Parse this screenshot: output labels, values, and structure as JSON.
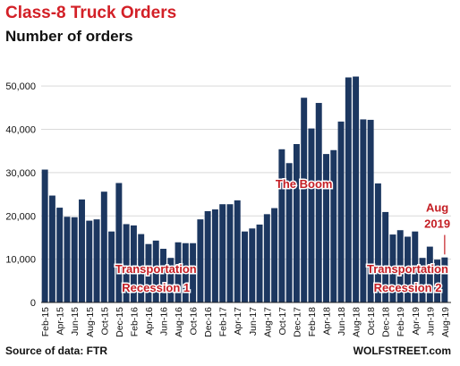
{
  "header": {
    "title": "Class-8 Truck Orders",
    "subtitle": "Number of orders"
  },
  "footer": {
    "source": "Source of data: FTR",
    "brand": "WOLFSTREET.com"
  },
  "colors": {
    "bar": "#1c3760",
    "title": "#d32027",
    "annotation": "#c41e24",
    "grid": "#d9d9d9",
    "axis": "#222222"
  },
  "chart_data": {
    "type": "bar",
    "title": "Class-8 Truck Orders",
    "subtitle": "Number of orders",
    "xlabel": "",
    "ylabel": "",
    "ylim": [
      0,
      55000
    ],
    "yticks": [
      0,
      10000,
      20000,
      30000,
      40000,
      50000
    ],
    "ytick_labels": [
      "0",
      "10,000",
      "20,000",
      "30,000",
      "40,000",
      "50,000"
    ],
    "grid": "horizontal",
    "categories": [
      "Feb-15",
      "Mar-15",
      "Apr-15",
      "May-15",
      "Jun-15",
      "Jul-15",
      "Aug-15",
      "Sep-15",
      "Oct-15",
      "Nov-15",
      "Dec-15",
      "Jan-16",
      "Feb-16",
      "Mar-16",
      "Apr-16",
      "May-16",
      "Jun-16",
      "Jul-16",
      "Aug-16",
      "Sep-16",
      "Oct-16",
      "Nov-16",
      "Dec-16",
      "Jan-17",
      "Feb-17",
      "Mar-17",
      "Apr-17",
      "May-17",
      "Jun-17",
      "Jul-17",
      "Aug-17",
      "Sep-17",
      "Oct-17",
      "Nov-17",
      "Dec-17",
      "Jan-18",
      "Feb-18",
      "Mar-18",
      "Apr-18",
      "May-18",
      "Jun-18",
      "Jul-18",
      "Aug-18",
      "Sep-18",
      "Oct-18",
      "Nov-18",
      "Dec-18",
      "Jan-19",
      "Feb-19",
      "Mar-19",
      "Apr-19",
      "May-19",
      "Jun-19",
      "Jul-19",
      "Aug-19"
    ],
    "xtick_labels": [
      "Feb-15",
      "Apr-15",
      "Jun-15",
      "Aug-15",
      "Oct-15",
      "Dec-15",
      "Feb-16",
      "Apr-16",
      "Jun-16",
      "Aug-16",
      "Oct-16",
      "Dec-16",
      "Feb-17",
      "Apr-17",
      "Jun-17",
      "Aug-17",
      "Oct-17",
      "Dec-17",
      "Feb-18",
      "Apr-18",
      "Jun-18",
      "Aug-18",
      "Oct-18",
      "Dec-18",
      "Feb-19",
      "Apr-19",
      "Jun-19",
      "Aug-19"
    ],
    "values": [
      30700,
      24700,
      21900,
      19800,
      19700,
      23800,
      18900,
      19200,
      25600,
      16400,
      27600,
      18100,
      17800,
      15800,
      13500,
      14300,
      12400,
      10300,
      13900,
      13700,
      13700,
      19200,
      21100,
      21500,
      22700,
      22700,
      23600,
      16400,
      17100,
      18000,
      20400,
      21800,
      35400,
      32200,
      36600,
      47300,
      40200,
      46100,
      34300,
      35200,
      41800,
      52000,
      52200,
      42300,
      42200,
      27500,
      20900,
      15700,
      16700,
      15200,
      16400,
      10300,
      12900,
      9900,
      10400
    ],
    "annotations": [
      {
        "text": "The Boom",
        "at": "Jan-18",
        "y": 26500
      },
      {
        "text": "Aug",
        "at": "Jul-19",
        "y": 21000
      },
      {
        "text": "2019",
        "at": "Jul-19",
        "y": 17300
      },
      {
        "text": "Transportation",
        "at": "May-16",
        "y": 6800
      },
      {
        "text": "Recession 1",
        "at": "May-16",
        "y": 2500
      },
      {
        "text": "Transportation",
        "at": "Mar-19",
        "y": 6800
      },
      {
        "text": "Recession 2",
        "at": "Mar-19",
        "y": 2500
      }
    ]
  }
}
